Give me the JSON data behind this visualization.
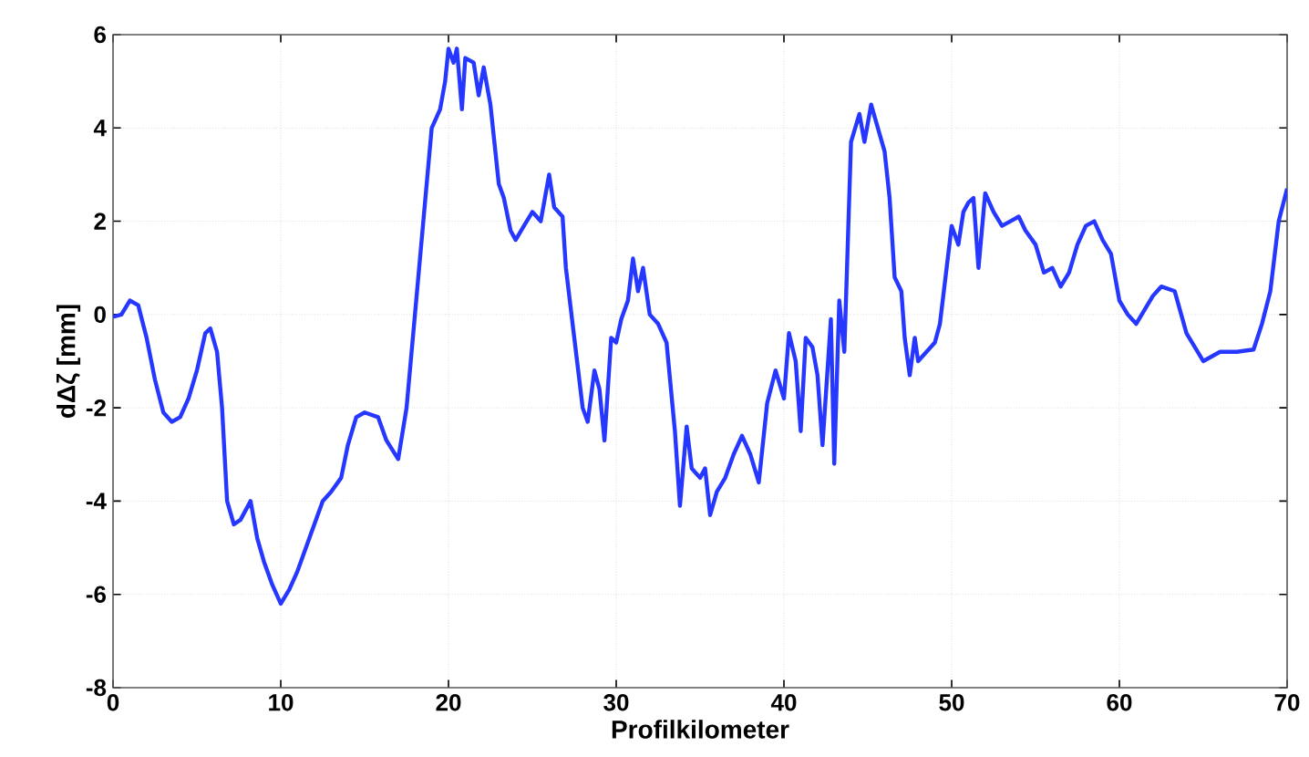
{
  "chart_data": {
    "type": "line",
    "xlabel": "Profilkilometer",
    "ylabel": "dΔζ [mm]",
    "xlim": [
      0,
      70
    ],
    "ylim": [
      -8,
      6
    ],
    "xticks": [
      0,
      10,
      20,
      30,
      40,
      50,
      60,
      70
    ],
    "yticks": [
      -8,
      -6,
      -4,
      -2,
      0,
      2,
      4,
      6
    ],
    "grid": true,
    "line_style": "solid",
    "marker": "none",
    "series": [
      {
        "color": "#2638ff",
        "x": [
          0,
          0.5,
          1,
          1.5,
          2,
          2.5,
          3,
          3.5,
          4,
          4.5,
          5,
          5.5,
          5.8,
          6.2,
          6.5,
          6.8,
          7.2,
          7.6,
          8.2,
          8.6,
          9,
          9.5,
          10,
          10.5,
          11,
          11.5,
          12,
          12.5,
          13,
          13.6,
          14,
          14.5,
          15,
          15.8,
          16.3,
          17,
          17.5,
          18,
          18.5,
          19,
          19.5,
          19.8,
          20,
          20.3,
          20.5,
          20.8,
          21,
          21.5,
          21.8,
          22.1,
          22.5,
          23,
          23.3,
          23.7,
          24,
          24.5,
          25,
          25.5,
          26,
          26.3,
          26.8,
          27,
          27.5,
          28,
          28.3,
          28.7,
          29,
          29.3,
          29.7,
          30,
          30.3,
          30.7,
          31,
          31.3,
          31.6,
          32,
          32.5,
          33,
          33.5,
          33.8,
          34.2,
          34.5,
          35,
          35.3,
          35.6,
          36,
          36.5,
          37,
          37.5,
          38,
          38.5,
          39,
          39.5,
          40,
          40.3,
          40.7,
          41,
          41.3,
          41.7,
          42,
          42.3,
          42.8,
          43,
          43.3,
          43.6,
          44,
          44.5,
          44.8,
          45.2,
          45.6,
          46,
          46.3,
          46.6,
          47,
          47.2,
          47.5,
          47.8,
          48,
          48.5,
          49,
          49.3,
          49.7,
          50,
          50.4,
          50.7,
          51,
          51.3,
          51.6,
          52,
          52.5,
          53,
          53.5,
          54,
          54.4,
          55,
          55.5,
          56,
          56.5,
          57,
          57.5,
          58,
          58.5,
          59,
          59.5,
          60,
          60.5,
          61,
          62,
          62.5,
          63.3,
          64,
          64.5,
          65,
          66,
          67,
          68,
          68.5,
          69,
          69.5,
          70
        ],
        "values": [
          -0.05,
          0,
          0.3,
          0.2,
          -0.5,
          -1.4,
          -2.1,
          -2.3,
          -2.2,
          -1.8,
          -1.2,
          -0.4,
          -0.3,
          -0.8,
          -2,
          -4,
          -4.5,
          -4.4,
          -4,
          -4.8,
          -5.3,
          -5.8,
          -6.2,
          -5.9,
          -5.5,
          -5.0,
          -4.5,
          -4.0,
          -3.8,
          -3.5,
          -2.8,
          -2.2,
          -2.1,
          -2.2,
          -2.7,
          -3.1,
          -2.0,
          0,
          2,
          4,
          4.4,
          5.0,
          5.7,
          5.4,
          5.7,
          4.4,
          5.5,
          5.4,
          4.7,
          5.3,
          4.5,
          2.8,
          2.5,
          1.8,
          1.6,
          1.9,
          2.2,
          2.0,
          3.0,
          2.3,
          2.1,
          1.0,
          -0.5,
          -2.0,
          -2.3,
          -1.2,
          -1.6,
          -2.7,
          -0.5,
          -0.6,
          -0.1,
          0.3,
          1.2,
          0.5,
          1.0,
          0,
          -0.2,
          -0.6,
          -2.5,
          -4.1,
          -2.4,
          -3.3,
          -3.5,
          -3.3,
          -4.3,
          -3.8,
          -3.5,
          -3.0,
          -2.6,
          -3.0,
          -3.6,
          -1.9,
          -1.2,
          -1.8,
          -0.4,
          -1.0,
          -2.5,
          -0.5,
          -0.7,
          -1.3,
          -2.8,
          -0.1,
          -3.2,
          0.3,
          -0.8,
          3.7,
          4.3,
          3.7,
          4.5,
          4.0,
          3.5,
          2.5,
          0.8,
          0.5,
          -0.5,
          -1.3,
          -0.5,
          -1.0,
          -0.8,
          -0.6,
          -0.2,
          1.0,
          1.9,
          1.5,
          2.2,
          2.4,
          2.5,
          1.0,
          2.6,
          2.2,
          1.9,
          2.0,
          2.1,
          1.8,
          1.5,
          0.9,
          1.0,
          0.6,
          0.9,
          1.5,
          1.9,
          2.0,
          1.6,
          1.3,
          0.3,
          0,
          -0.2,
          0.4,
          0.6,
          0.5,
          -0.4,
          -0.7,
          -1.0,
          -0.8,
          -0.8,
          -0.75,
          -0.2,
          0.5,
          2.0,
          2.7
        ]
      }
    ]
  }
}
